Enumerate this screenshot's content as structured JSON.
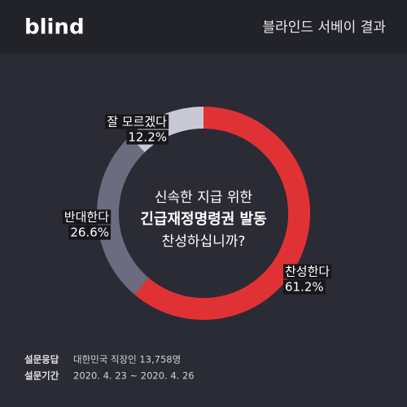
{
  "header": {
    "logo": "blind",
    "title": "블라인드 서베이 결과"
  },
  "chart_data": {
    "type": "donut",
    "center_text": [
      "신속한 지급 위한",
      "긴급재정명령권 발동",
      "찬성하십니까?"
    ],
    "categories": [
      "찬성한다",
      "반대한다",
      "잘 모르겠다"
    ],
    "values": [
      61.2,
      26.6,
      12.2
    ],
    "value_labels": [
      "61.2%",
      "26.6%",
      "12.2%"
    ],
    "colors": [
      "#e03235",
      "#6b6c80",
      "#c9c9d6"
    ]
  },
  "footer": [
    {
      "label": "설문응답",
      "text": "대한민국 직장인 13,758명"
    },
    {
      "label": "설문기간",
      "text": "2020. 4. 23 ~ 2020. 4. 26"
    }
  ]
}
